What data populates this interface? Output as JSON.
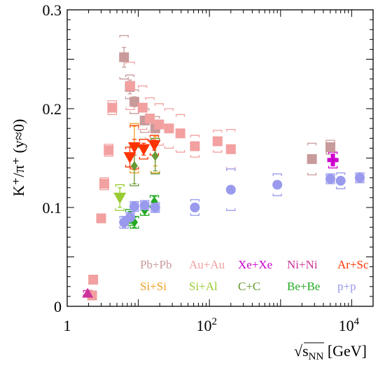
{
  "chart_data": {
    "type": "scatter",
    "xlabel_base": "√s",
    "xlabel_sub": "NN",
    "xlabel_unit": " [GeV]",
    "ylabel": "K⁺/π⁺ (y≈0)",
    "x_scale": "log",
    "xlim": [
      1,
      20000
    ],
    "ylim": [
      0,
      0.3
    ],
    "x_ticks": [
      {
        "value": 1,
        "label": "1"
      },
      {
        "value": 100,
        "label": "10",
        "sup": "2"
      },
      {
        "value": 10000,
        "label": "10",
        "sup": "4"
      }
    ],
    "y_ticks": [
      {
        "value": 0,
        "label": "0"
      },
      {
        "value": 0.1,
        "label": "0.1"
      },
      {
        "value": 0.2,
        "label": "0.2"
      },
      {
        "value": 0.3,
        "label": "0.3"
      }
    ],
    "grid": false,
    "legend_position": "bottom-right",
    "series": [
      {
        "name": "Pb+Pb",
        "color": "#c99a9a",
        "marker": "square",
        "points": [
          {
            "x": 6.3,
            "y": 0.252,
            "stat": 0.01,
            "sys": 0.022
          },
          {
            "x": 7.6,
            "y": 0.222,
            "stat": 0.007,
            "sys": 0.012
          },
          {
            "x": 8.8,
            "y": 0.207,
            "stat": 0.005,
            "sys": 0.012
          },
          {
            "x": 12.3,
            "y": 0.188,
            "stat": 0.004,
            "sys": 0.012
          },
          {
            "x": 17.3,
            "y": 0.18,
            "stat": 0.004,
            "sys": 0.012
          },
          {
            "x": 2760,
            "y": 0.149,
            "stat": 0.002,
            "sys": 0.016
          },
          {
            "x": 5020,
            "y": 0.161,
            "stat": 0.002,
            "sys": 0.007
          }
        ]
      },
      {
        "name": "Au+Au",
        "color": "#f2a0a0",
        "marker": "square",
        "points": [
          {
            "x": 2.24,
            "y": 0.011,
            "stat": 0.001,
            "sys": 0.001
          },
          {
            "x": 2.32,
            "y": 0.027,
            "stat": 0.001,
            "sys": 0.001
          },
          {
            "x": 3.0,
            "y": 0.089,
            "stat": 0.002,
            "sys": 0.003
          },
          {
            "x": 3.32,
            "y": 0.124,
            "stat": 0.003,
            "sys": 0.006
          },
          {
            "x": 3.83,
            "y": 0.158,
            "stat": 0.003,
            "sys": 0.006
          },
          {
            "x": 4.3,
            "y": 0.201,
            "stat": 0.004,
            "sys": 0.007
          },
          {
            "x": 7.7,
            "y": 0.223,
            "stat": 0.004,
            "sys": 0.024
          },
          {
            "x": 11.5,
            "y": 0.201,
            "stat": 0.003,
            "sys": 0.022
          },
          {
            "x": 14.5,
            "y": 0.19,
            "stat": 0.003,
            "sys": 0.021
          },
          {
            "x": 19.6,
            "y": 0.184,
            "stat": 0.003,
            "sys": 0.021
          },
          {
            "x": 27,
            "y": 0.18,
            "stat": 0.002,
            "sys": 0.02
          },
          {
            "x": 39,
            "y": 0.175,
            "stat": 0.002,
            "sys": 0.019
          },
          {
            "x": 62.4,
            "y": 0.162,
            "stat": 0.002,
            "sys": 0.011
          },
          {
            "x": 130,
            "y": 0.167,
            "stat": 0.002,
            "sys": 0.011
          },
          {
            "x": 200,
            "y": 0.159,
            "stat": 0.002,
            "sys": 0.02
          }
        ]
      },
      {
        "name": "Xe+Xe",
        "color": "#cc00cc",
        "marker": "cross",
        "points": [
          {
            "x": 5440,
            "y": 0.148,
            "stat": 0.006,
            "sys": 0.008
          }
        ]
      },
      {
        "name": "Ni+Ni",
        "color": "#cc3399",
        "marker": "triangle-up",
        "points": [
          {
            "x": 1.94,
            "y": 0.013,
            "stat": 0.003,
            "sys": 0.003
          }
        ]
      },
      {
        "name": "Ar+Sc",
        "color": "#ff3300",
        "marker": "triangle-down",
        "points": [
          {
            "x": 7.6,
            "y": 0.151,
            "stat": 0.01,
            "sys": 0.01
          },
          {
            "x": 8.8,
            "y": 0.161,
            "stat": 0.008,
            "sys": 0.022
          },
          {
            "x": 11.9,
            "y": 0.159,
            "stat": 0.006,
            "sys": 0.01
          },
          {
            "x": 16.8,
            "y": 0.163,
            "stat": 0.005,
            "sys": 0.01
          }
        ]
      },
      {
        "name": "Si+Si",
        "color": "#f0a020",
        "marker": "none",
        "points": [
          {
            "x": 8.8,
            "y": 0.16,
            "stat": 0.022,
            "sys": 0.025
          },
          {
            "x": 17.3,
            "y": 0.157,
            "stat": 0.015,
            "sys": 0.022
          }
        ]
      },
      {
        "name": "Si+Al",
        "color": "#99cc33",
        "marker": "triangle-down",
        "points": [
          {
            "x": 5.5,
            "y": 0.11,
            "stat": 0.01,
            "sys": 0.013
          }
        ]
      },
      {
        "name": "C+C",
        "color": "#669933",
        "marker": "diamond",
        "points": [
          {
            "x": 8.8,
            "y": 0.142,
            "stat": 0.018,
            "sys": 0.02
          },
          {
            "x": 17.3,
            "y": 0.152,
            "stat": 0.015,
            "sys": 0.018
          }
        ]
      },
      {
        "name": "Be+Be",
        "color": "#22aa22",
        "marker": "diamond",
        "points": [
          {
            "x": 7.6,
            "y": 0.09,
            "stat": 0.006,
            "sys": 0.008
          },
          {
            "x": 8.8,
            "y": 0.085,
            "stat": 0.005,
            "sys": 0.006
          },
          {
            "x": 12.3,
            "y": 0.097,
            "stat": 0.005,
            "sys": 0.005
          },
          {
            "x": 16.8,
            "y": 0.106,
            "stat": 0.005,
            "sys": 0.006
          }
        ]
      },
      {
        "name": "p+p",
        "color": "#9999ee",
        "marker": "circle",
        "points": [
          {
            "x": 6.3,
            "y": 0.085,
            "stat": 0.005,
            "sys": 0.006
          },
          {
            "x": 7.7,
            "y": 0.09,
            "stat": 0.004,
            "sys": 0.005
          },
          {
            "x": 8.8,
            "y": 0.101,
            "stat": 0.004,
            "sys": 0.005
          },
          {
            "x": 12.3,
            "y": 0.102,
            "stat": 0.004,
            "sys": 0.005
          },
          {
            "x": 17.3,
            "y": 0.1,
            "stat": 0.004,
            "sys": 0.005
          },
          {
            "x": 62.4,
            "y": 0.1,
            "stat": 0.003,
            "sys": 0.008
          },
          {
            "x": 200,
            "y": 0.118,
            "stat": 0.003,
            "sys": 0.021
          },
          {
            "x": 900,
            "y": 0.123,
            "stat": 0.003,
            "sys": 0.011
          },
          {
            "x": 5020,
            "y": 0.129,
            "stat": 0.003,
            "sys": 0.005
          },
          {
            "x": 7000,
            "y": 0.127,
            "stat": 0.003,
            "sys": 0.008
          },
          {
            "x": 13000,
            "y": 0.13,
            "stat": 0.003,
            "sys": 0.005
          }
        ]
      }
    ],
    "legend": [
      {
        "text": "Pb+Pb",
        "color": "#c99a9a",
        "row": 0,
        "col": 0
      },
      {
        "text": "Au+Au",
        "color": "#f2a0a0",
        "row": 0,
        "col": 1
      },
      {
        "text": "Xe+Xe",
        "color": "#cc00cc",
        "row": 0,
        "col": 2
      },
      {
        "text": "Ni+Ni",
        "color": "#cc3399",
        "row": 0,
        "col": 3
      },
      {
        "text": "Ar+Sc",
        "color": "#ff3300",
        "row": 0,
        "col": 4
      },
      {
        "text": "Si+Si",
        "color": "#f0a020",
        "row": 1,
        "col": 0
      },
      {
        "text": "Si+Al",
        "color": "#99cc33",
        "row": 1,
        "col": 1
      },
      {
        "text": "C+C",
        "color": "#669933",
        "row": 1,
        "col": 2
      },
      {
        "text": "Be+Be",
        "color": "#22aa22",
        "row": 1,
        "col": 3
      },
      {
        "text": "p+p",
        "color": "#9999ee",
        "row": 1,
        "col": 4
      }
    ]
  }
}
